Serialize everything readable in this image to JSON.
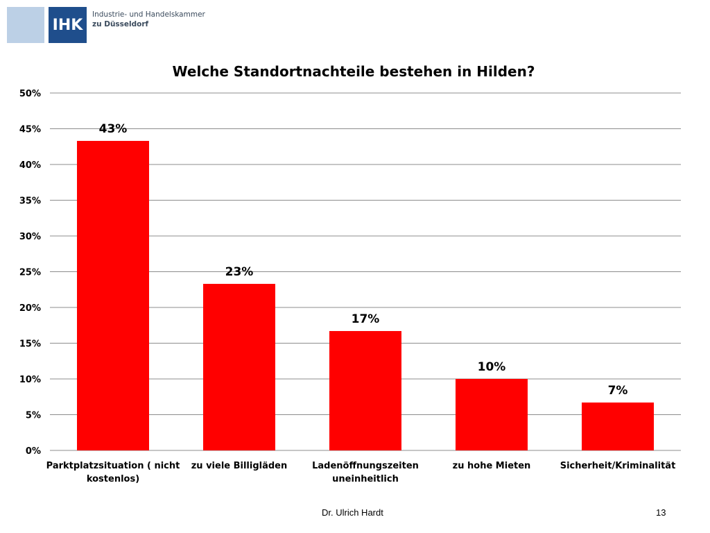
{
  "header": {
    "logo_text": "IHK",
    "org_line1": "Industrie- und Handelskammer",
    "org_line2": "zu Düsseldorf"
  },
  "chart_data": {
    "type": "bar",
    "title": "Welche Standortnachteile bestehen in Hilden?",
    "categories": [
      [
        "Parktplatzsituation ( nicht",
        "kostenlos)"
      ],
      [
        "zu viele Billigläden"
      ],
      [
        "Ladenöffnungszeiten",
        "uneinheitlich"
      ],
      [
        "zu hohe Mieten"
      ],
      [
        "Sicherheit/Kriminalität"
      ]
    ],
    "values": [
      43.3,
      23.3,
      16.7,
      10.0,
      6.7
    ],
    "data_labels": [
      "43%",
      "23%",
      "17%",
      "10%",
      "7%"
    ],
    "ylim": [
      0,
      50
    ],
    "yticks": [
      0,
      5,
      10,
      15,
      20,
      25,
      30,
      35,
      40,
      45,
      50
    ],
    "ytick_labels": [
      "0%",
      "5%",
      "10%",
      "15%",
      "20%",
      "25%",
      "30%",
      "35%",
      "40%",
      "45%",
      "50%"
    ],
    "bar_color": "#ff0000",
    "grid": true
  },
  "footer": {
    "author": "Dr. Ulrich Hardt",
    "page": "13"
  }
}
